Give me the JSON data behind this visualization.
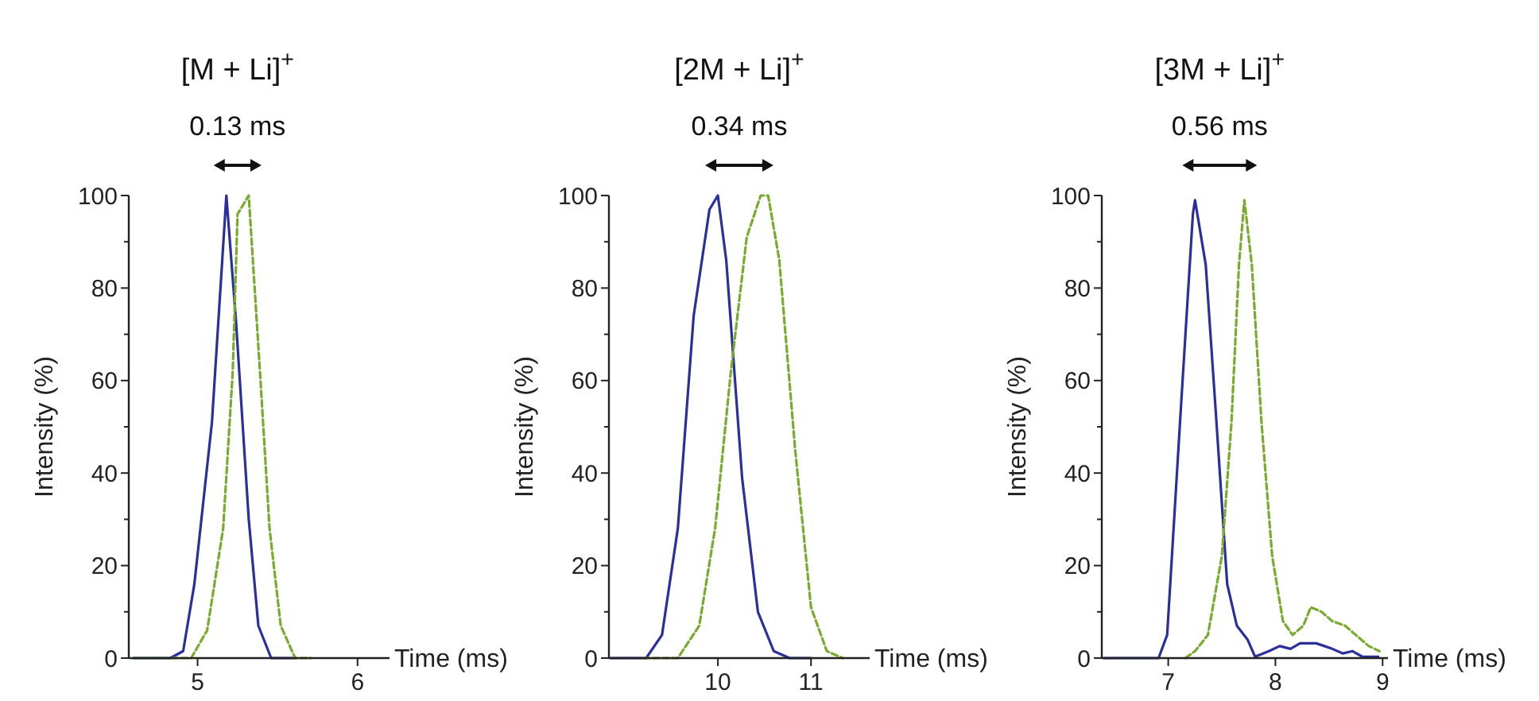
{
  "chart_data": [
    {
      "type": "line",
      "title": "[M + Li]$^{+}$",
      "xlabel": "Time (ms)",
      "ylabel": "Intensity (%)",
      "annotations": [
        "0.13 ms"
      ],
      "xlim": [
        4.57,
        6.2
      ],
      "xticks": [
        5,
        6
      ],
      "ylim": [
        0,
        100
      ],
      "yticks": [
        0,
        {
          "value": 10,
          "label": null
        },
        20,
        {
          "value": 30,
          "label": null
        },
        40,
        {
          "value": 50,
          "label": null
        },
        60,
        {
          "value": 70,
          "label": null
        },
        80,
        {
          "value": 90,
          "label": null
        },
        100
      ],
      "series": [
        {
          "color": "#2b2f9c",
          "line_style": "solid",
          "x": [
            4.6,
            4.83,
            4.91,
            4.98,
            5.09,
            5.18,
            5.24,
            5.32,
            5.38,
            5.46,
            5.61
          ],
          "values": [
            0,
            0,
            1.5,
            16,
            51,
            100,
            73,
            30,
            7,
            0,
            0
          ]
        },
        {
          "color": "#7aab2e",
          "line_style": "dashed",
          "x": [
            4.6,
            4.96,
            5.06,
            5.16,
            5.22,
            5.25,
            5.32,
            5.39,
            5.45,
            5.52,
            5.61,
            5.71
          ],
          "values": [
            0,
            0,
            6,
            28,
            62,
            96,
            100,
            62,
            28,
            7,
            0,
            0
          ]
        }
      ]
    },
    {
      "type": "line",
      "title": "[2M + Li]$^{+}$",
      "xlabel": "Time (ms)",
      "ylabel": "Intensity (%)",
      "annotations": [
        "0.34 ms"
      ],
      "xlim": [
        8.83,
        11.63
      ],
      "xticks": [
        10,
        11
      ],
      "ylim": [
        0,
        100
      ],
      "yticks": [
        0,
        {
          "value": 10,
          "label": null
        },
        20,
        {
          "value": 30,
          "label": null
        },
        40,
        {
          "value": 50,
          "label": null
        },
        60,
        {
          "value": 70,
          "label": null
        },
        80,
        {
          "value": 90,
          "label": null
        },
        100
      ],
      "series": [
        {
          "color": "#2b2f9c",
          "line_style": "solid",
          "x": [
            8.85,
            9.23,
            9.4,
            9.57,
            9.74,
            9.91,
            10.0,
            10.09,
            10.26,
            10.43,
            10.6,
            10.77,
            11.0
          ],
          "values": [
            0,
            0,
            5,
            28,
            74,
            97,
            100,
            86,
            39,
            10,
            1.5,
            0,
            0
          ]
        },
        {
          "color": "#7aab2e",
          "line_style": "dashed",
          "x": [
            9.2,
            9.57,
            9.8,
            9.97,
            10.14,
            10.31,
            10.46,
            10.54,
            10.66,
            10.83,
            11.0,
            11.17,
            11.34
          ],
          "values": [
            0,
            0,
            7,
            28,
            62,
            91,
            100,
            100,
            86,
            45,
            11,
            1.5,
            0
          ]
        }
      ]
    },
    {
      "type": "line",
      "title": "[3M + Li]$^{+}$",
      "xlabel": "Time (ms)",
      "ylabel": "Intensity (%)",
      "annotations": [
        "0.56 ms"
      ],
      "xlim": [
        6.38,
        9.05
      ],
      "xticks": [
        7,
        8,
        9
      ],
      "ylim": [
        0,
        100
      ],
      "yticks": [
        0,
        {
          "value": 10,
          "label": null
        },
        20,
        {
          "value": 30,
          "label": null
        },
        40,
        {
          "value": 50,
          "label": null
        },
        60,
        {
          "value": 70,
          "label": null
        },
        80,
        {
          "value": 90,
          "label": null
        },
        100
      ],
      "series": [
        {
          "color": "#2b2f9c",
          "line_style": "solid",
          "x": [
            6.4,
            6.91,
            6.99,
            7.11,
            7.23,
            7.25,
            7.35,
            7.45,
            7.55,
            7.64,
            7.74,
            7.81,
            7.94,
            8.04,
            8.14,
            8.23,
            8.38,
            8.53,
            8.63,
            8.72,
            8.81,
            8.96
          ],
          "values": [
            0,
            0,
            5,
            51,
            96,
            99,
            85,
            51,
            16,
            7,
            4,
            0.3,
            1.5,
            2.6,
            2,
            3.2,
            3.2,
            2,
            1,
            1.5,
            0.3,
            0.3
          ]
        },
        {
          "color": "#7aab2e",
          "line_style": "dashed",
          "x": [
            7.16,
            7.25,
            7.37,
            7.5,
            7.59,
            7.66,
            7.71,
            7.78,
            7.87,
            7.97,
            8.07,
            8.16,
            8.26,
            8.33,
            8.43,
            8.53,
            8.65,
            8.75,
            8.87,
            8.97
          ],
          "values": [
            0,
            1.5,
            5,
            22,
            51,
            85,
            99,
            85,
            51,
            22,
            8,
            5,
            7,
            11,
            10,
            8,
            7,
            5,
            2.6,
            1.5
          ]
        }
      ]
    }
  ]
}
